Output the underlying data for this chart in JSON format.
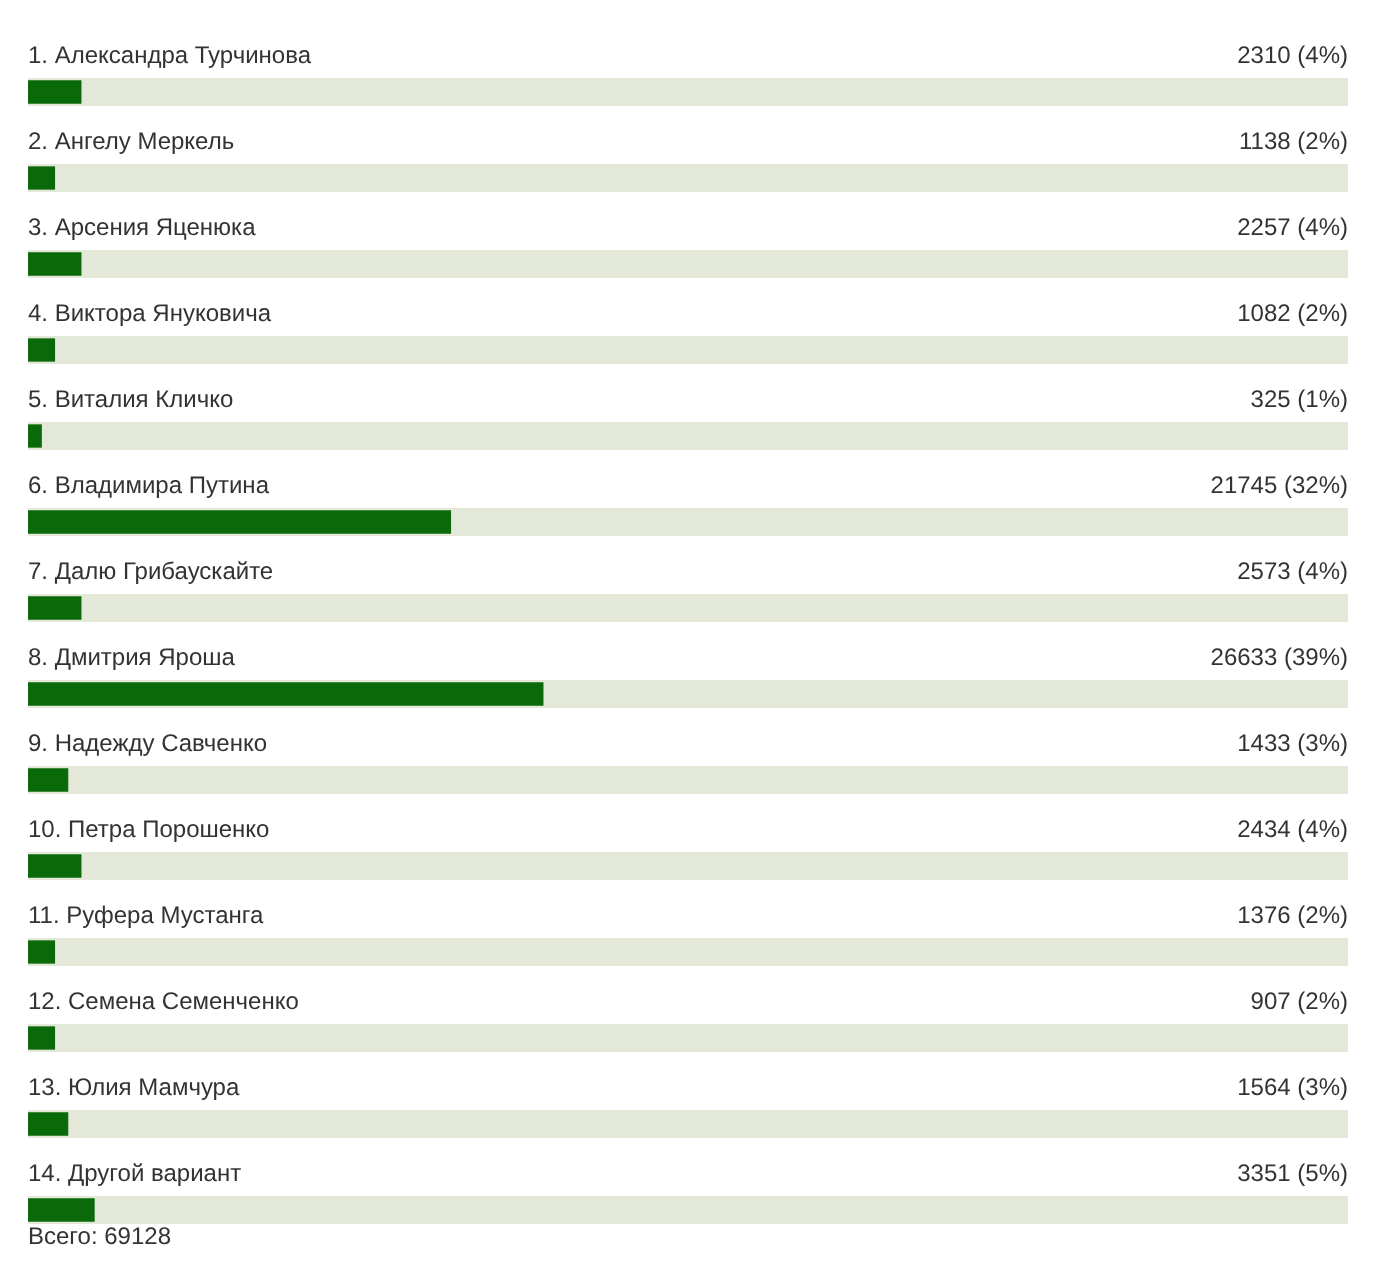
{
  "chart_data": {
    "type": "bar",
    "orientation": "horizontal",
    "categories": [
      "1. Александра Турчинова",
      "2. Ангелу Меркель",
      "3. Арсения Яценюка",
      "4. Виктора Януковича",
      "5. Виталия Кличко",
      "6. Владимира Путина",
      "7. Далю Грибаускайте",
      "8. Дмитрия Яроша",
      "9. Надежду Савченко",
      "10. Петра Порошенко",
      "11. Руфера Мустанга",
      "12. Семена Семенченко",
      "13. Юлия Мамчура",
      "14. Другой вариант"
    ],
    "values": [
      4,
      2,
      4,
      2,
      1,
      32,
      4,
      39,
      3,
      4,
      2,
      2,
      3,
      5
    ],
    "value_labels": [
      "2310 (4%)",
      "1138 (2%)",
      "2257 (4%)",
      "1082 (2%)",
      "325 (1%)",
      "21745 (32%)",
      "2573 (4%)",
      "26633 (39%)",
      "1433 (3%)",
      "2434 (4%)",
      "1376 (2%)",
      "907 (2%)",
      "1564 (3%)",
      "3351 (5%)"
    ],
    "color": "#0a6a0a",
    "xlim": [
      0,
      100
    ],
    "tick_labels": "y",
    "annotations": [
      "Всего: 69128"
    ]
  }
}
